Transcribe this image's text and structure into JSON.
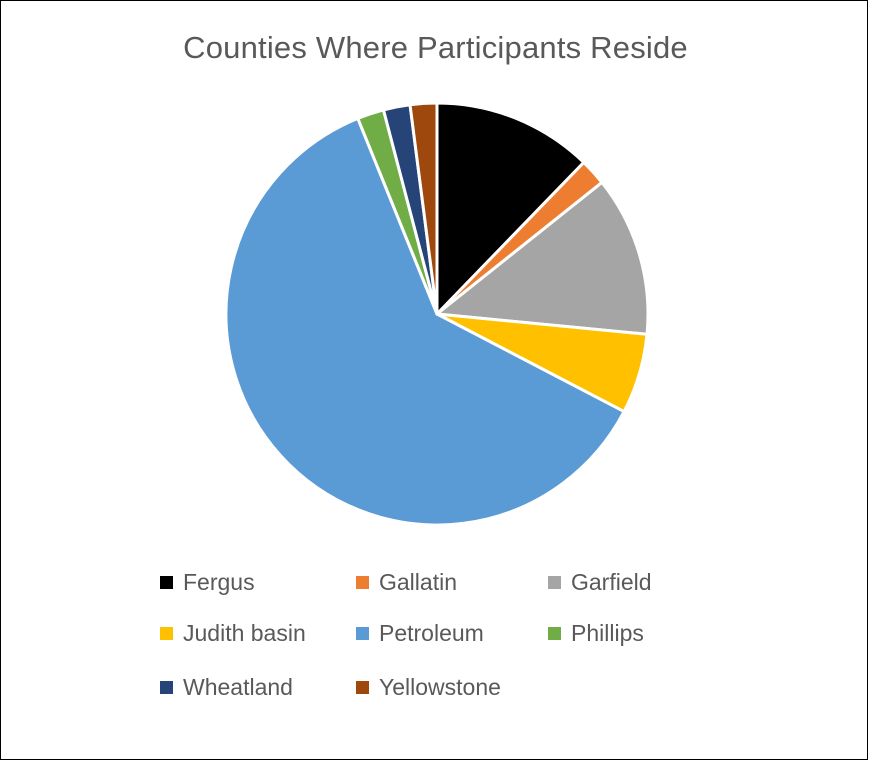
{
  "chart_data": {
    "type": "pie",
    "title": "Counties Where Participants Reside",
    "categories": [
      "Fergus",
      "Gallatin",
      "Garfield",
      "Judith basin",
      "Petroleum",
      "Phillips",
      "Wheatland",
      "Yellowstone"
    ],
    "values": [
      6,
      1,
      6,
      3,
      30,
      1,
      1,
      1
    ],
    "colors": [
      "#000000",
      "#ED7D31",
      "#A5A5A5",
      "#FFC000",
      "#5B9BD5",
      "#70AD47",
      "#264478",
      "#9E480E"
    ],
    "legend_position": "bottom",
    "start_angle_deg": 0,
    "direction": "clockwise"
  }
}
